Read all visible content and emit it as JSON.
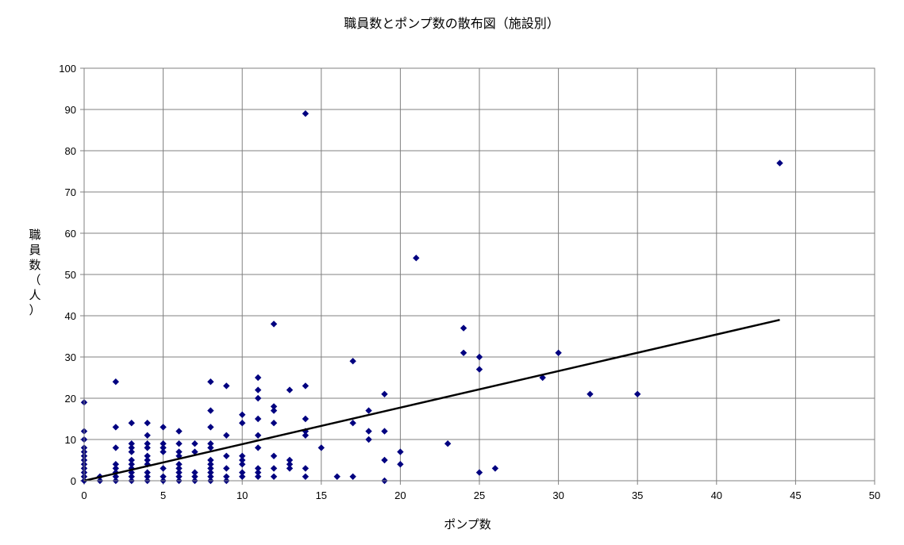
{
  "chart_data": {
    "type": "scatter",
    "title": "職員数とポンプ数の散布図（施設別）",
    "xlabel": "ポンプ数",
    "ylabel": [
      "職",
      "員",
      "数",
      "（",
      "人",
      "）"
    ],
    "xlim": [
      0,
      50
    ],
    "ylim": [
      0,
      100
    ],
    "xticks": [
      0,
      5,
      10,
      15,
      20,
      25,
      30,
      35,
      40,
      45,
      50
    ],
    "yticks": [
      0,
      10,
      20,
      30,
      40,
      50,
      60,
      70,
      80,
      90,
      100
    ],
    "grid": true,
    "marker_color": "#000080",
    "trend_color": "#000000",
    "trendline": {
      "x": [
        0,
        44
      ],
      "y": [
        0,
        39
      ]
    },
    "points": [
      [
        0,
        0
      ],
      [
        0,
        1
      ],
      [
        0,
        2
      ],
      [
        0,
        3
      ],
      [
        0,
        4
      ],
      [
        0,
        5
      ],
      [
        0,
        6
      ],
      [
        0,
        7
      ],
      [
        0,
        8
      ],
      [
        0,
        10
      ],
      [
        0,
        12
      ],
      [
        0,
        19
      ],
      [
        1,
        0
      ],
      [
        1,
        1
      ],
      [
        2,
        0
      ],
      [
        2,
        1
      ],
      [
        2,
        2
      ],
      [
        2,
        3
      ],
      [
        2,
        4
      ],
      [
        2,
        8
      ],
      [
        2,
        13
      ],
      [
        2,
        24
      ],
      [
        3,
        0
      ],
      [
        3,
        1
      ],
      [
        3,
        2
      ],
      [
        3,
        3
      ],
      [
        3,
        4
      ],
      [
        3,
        5
      ],
      [
        3,
        7
      ],
      [
        3,
        8
      ],
      [
        3,
        9
      ],
      [
        3,
        14
      ],
      [
        4,
        0
      ],
      [
        4,
        1
      ],
      [
        4,
        2
      ],
      [
        4,
        4
      ],
      [
        4,
        5
      ],
      [
        4,
        6
      ],
      [
        4,
        8
      ],
      [
        4,
        9
      ],
      [
        4,
        11
      ],
      [
        4,
        14
      ],
      [
        5,
        0
      ],
      [
        5,
        1
      ],
      [
        5,
        3
      ],
      [
        5,
        7
      ],
      [
        5,
        8
      ],
      [
        5,
        9
      ],
      [
        5,
        13
      ],
      [
        6,
        0
      ],
      [
        6,
        1
      ],
      [
        6,
        2
      ],
      [
        6,
        3
      ],
      [
        6,
        4
      ],
      [
        6,
        6
      ],
      [
        6,
        7
      ],
      [
        6,
        9
      ],
      [
        6,
        12
      ],
      [
        7,
        0
      ],
      [
        7,
        1
      ],
      [
        7,
        2
      ],
      [
        7,
        7
      ],
      [
        7,
        9
      ],
      [
        8,
        0
      ],
      [
        8,
        1
      ],
      [
        8,
        2
      ],
      [
        8,
        3
      ],
      [
        8,
        4
      ],
      [
        8,
        5
      ],
      [
        8,
        8
      ],
      [
        8,
        9
      ],
      [
        8,
        13
      ],
      [
        8,
        17
      ],
      [
        8,
        24
      ],
      [
        9,
        0
      ],
      [
        9,
        1
      ],
      [
        9,
        3
      ],
      [
        9,
        6
      ],
      [
        9,
        11
      ],
      [
        9,
        23
      ],
      [
        10,
        1
      ],
      [
        10,
        2
      ],
      [
        10,
        4
      ],
      [
        10,
        5
      ],
      [
        10,
        6
      ],
      [
        10,
        14
      ],
      [
        10,
        16
      ],
      [
        11,
        1
      ],
      [
        11,
        2
      ],
      [
        11,
        3
      ],
      [
        11,
        8
      ],
      [
        11,
        11
      ],
      [
        11,
        15
      ],
      [
        11,
        20
      ],
      [
        11,
        22
      ],
      [
        11,
        25
      ],
      [
        12,
        1
      ],
      [
        12,
        3
      ],
      [
        12,
        6
      ],
      [
        12,
        14
      ],
      [
        12,
        17
      ],
      [
        12,
        18
      ],
      [
        12,
        38
      ],
      [
        13,
        3
      ],
      [
        13,
        4
      ],
      [
        13,
        5
      ],
      [
        13,
        22
      ],
      [
        14,
        1
      ],
      [
        14,
        3
      ],
      [
        14,
        11
      ],
      [
        14,
        12
      ],
      [
        14,
        15
      ],
      [
        14,
        23
      ],
      [
        14,
        89
      ],
      [
        15,
        8
      ],
      [
        16,
        1
      ],
      [
        17,
        1
      ],
      [
        17,
        14
      ],
      [
        17,
        29
      ],
      [
        18,
        10
      ],
      [
        18,
        12
      ],
      [
        18,
        17
      ],
      [
        19,
        0
      ],
      [
        19,
        5
      ],
      [
        19,
        12
      ],
      [
        19,
        21
      ],
      [
        20,
        4
      ],
      [
        20,
        7
      ],
      [
        21,
        54
      ],
      [
        23,
        9
      ],
      [
        24,
        31
      ],
      [
        24,
        37
      ],
      [
        25,
        2
      ],
      [
        25,
        27
      ],
      [
        25,
        30
      ],
      [
        26,
        3
      ],
      [
        29,
        25
      ],
      [
        30,
        31
      ],
      [
        32,
        21
      ],
      [
        35,
        21
      ],
      [
        44,
        77
      ]
    ]
  }
}
